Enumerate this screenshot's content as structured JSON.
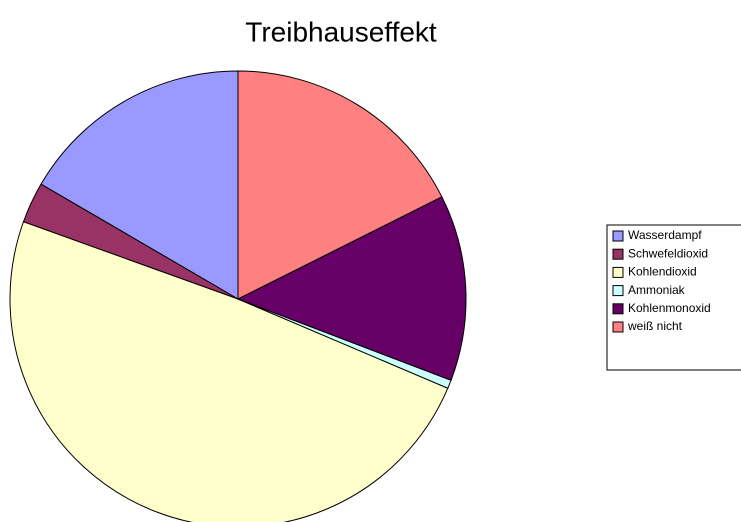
{
  "chart_data": {
    "type": "pie",
    "title": "Treibhauseffekt",
    "categories": [
      "Wasserdampf",
      "Schwefeldioxid",
      "Kohlendioxid",
      "Ammoniak",
      "Kohlenmonoxid",
      "weiß nicht"
    ],
    "values": [
      16.6,
      2.9,
      49.1,
      0.6,
      13.2,
      17.6
    ],
    "colors": [
      "#9999ff",
      "#993366",
      "#ffffcc",
      "#ccffff",
      "#660066",
      "#ff8080"
    ],
    "legend": "right"
  }
}
